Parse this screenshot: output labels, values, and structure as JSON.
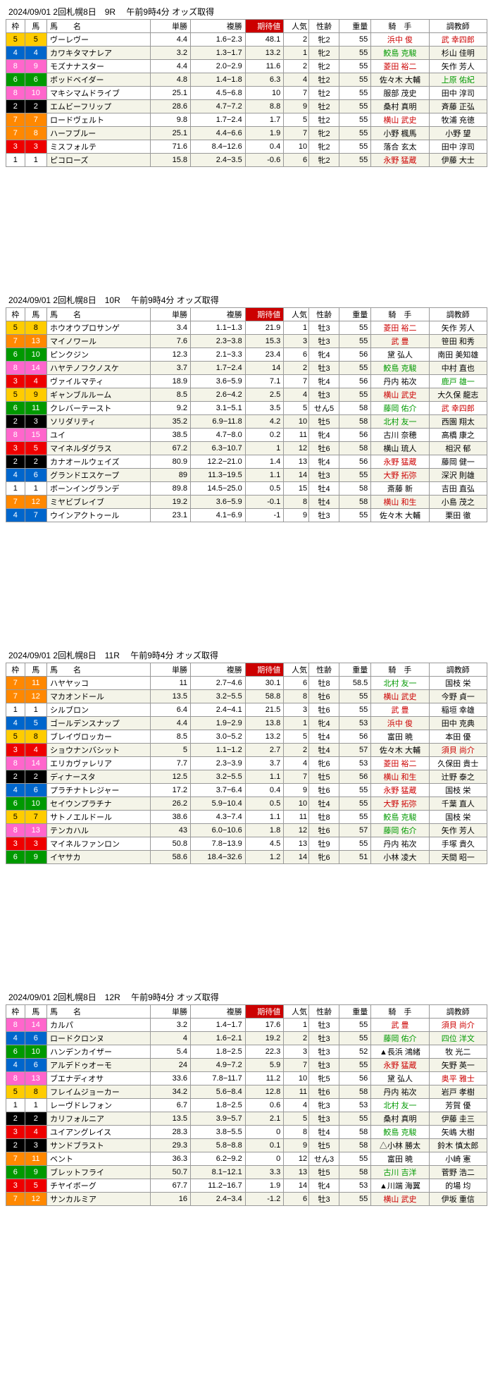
{
  "headers": {
    "waku": "枠",
    "uma": "馬",
    "name": "馬　　名",
    "tan": "単勝",
    "fuku": "複勝",
    "kitai": "期待値",
    "ninki": "人気",
    "sei": "性齢",
    "ju": "重量",
    "kishu": "騎　手",
    "tyo": "調教師"
  },
  "races": [
    {
      "title": "2024/09/01  2回札幌8日　9R　 午前9時4分 オッズ取得",
      "rows": [
        {
          "waku": 5,
          "uma": 5,
          "name": "ヴーレヴー",
          "tan": "4.4",
          "fuku": "1.6−2.3",
          "kitai": "48.1",
          "ninki": 2,
          "sei": "牝2",
          "ju": 55,
          "kishu": "浜中 俊",
          "kHL": "red",
          "tyo": "武 幸四郎",
          "tHL": "red"
        },
        {
          "waku": 4,
          "uma": 4,
          "name": "カワキタマナレア",
          "tan": "3.2",
          "fuku": "1.3−1.7",
          "kitai": "13.2",
          "ninki": 1,
          "sei": "牝2",
          "ju": 55,
          "kishu": "鮫島 克駿",
          "kHL": "green",
          "tyo": "杉山 佳明"
        },
        {
          "waku": 8,
          "uma": 9,
          "name": "モズナナスター",
          "tan": "4.4",
          "fuku": "2.0−2.9",
          "kitai": "11.6",
          "ninki": 2,
          "sei": "牝2",
          "ju": 55,
          "kishu": "菱田 裕二",
          "kHL": "red",
          "tyo": "矢作 芳人"
        },
        {
          "waku": 6,
          "uma": 6,
          "name": "ボッドベイダー",
          "tan": "4.8",
          "fuku": "1.4−1.8",
          "kitai": "6.3",
          "ninki": 4,
          "sei": "牡2",
          "ju": 55,
          "kishu": "佐々木 大輔",
          "tyo": "上原 佑紀",
          "tHL": "green"
        },
        {
          "waku": 8,
          "uma": 10,
          "name": "マキシマムドライブ",
          "tan": "25.1",
          "fuku": "4.5−6.8",
          "kitai": "10",
          "ninki": 7,
          "sei": "牡2",
          "ju": 55,
          "kishu": "服部 茂史",
          "tyo": "田中 淳司"
        },
        {
          "waku": 2,
          "uma": 2,
          "name": "エムビーフリップ",
          "tan": "28.6",
          "fuku": "4.7−7.2",
          "kitai": "8.8",
          "ninki": 9,
          "sei": "牡2",
          "ju": 55,
          "kishu": "桑村 真明",
          "tyo": "斉藤 正弘"
        },
        {
          "waku": 7,
          "uma": 7,
          "name": "ロードヴェルト",
          "tan": "9.8",
          "fuku": "1.7−2.4",
          "kitai": "1.7",
          "ninki": 5,
          "sei": "牡2",
          "ju": 55,
          "kishu": "横山 武史",
          "kHL": "red",
          "tyo": "牧浦 充徳"
        },
        {
          "waku": 7,
          "uma": 8,
          "name": "ハーフブルー",
          "tan": "25.1",
          "fuku": "4.4−6.6",
          "kitai": "1.9",
          "ninki": 7,
          "sei": "牝2",
          "ju": 55,
          "kishu": "小野 楓馬",
          "tyo": "小野 望"
        },
        {
          "waku": 3,
          "uma": 3,
          "name": "ミスフォルテ",
          "tan": "71.6",
          "fuku": "8.4−12.6",
          "kitai": "0.4",
          "ninki": 10,
          "sei": "牝2",
          "ju": 55,
          "kishu": "落合 玄太",
          "tyo": "田中 淳司"
        },
        {
          "waku": 1,
          "uma": 1,
          "name": "ピコローズ",
          "tan": "15.8",
          "fuku": "2.4−3.5",
          "kitai": "-0.6",
          "ninki": 6,
          "sei": "牝2",
          "ju": 55,
          "kishu": "永野 猛蔵",
          "kHL": "red",
          "tyo": "伊藤 大士"
        }
      ]
    },
    {
      "title": "2024/09/01  2回札幌8日　10R　 午前9時4分 オッズ取得",
      "rows": [
        {
          "waku": 5,
          "uma": 8,
          "name": "ホウオウプロサンゲ",
          "tan": "3.4",
          "fuku": "1.1−1.3",
          "kitai": "21.9",
          "ninki": 1,
          "sei": "牡3",
          "ju": 55,
          "kishu": "菱田 裕二",
          "kHL": "red",
          "tyo": "矢作 芳人"
        },
        {
          "waku": 7,
          "uma": 13,
          "name": "マイノワール",
          "tan": "7.6",
          "fuku": "2.3−3.8",
          "kitai": "15.3",
          "ninki": 3,
          "sei": "牡3",
          "ju": 55,
          "kishu": "武 豊",
          "kHL": "red",
          "tyo": "笹田 和秀"
        },
        {
          "waku": 6,
          "uma": 10,
          "name": "ピンクジン",
          "tan": "12.3",
          "fuku": "2.1−3.3",
          "kitai": "23.4",
          "ninki": 6,
          "sei": "牝4",
          "ju": 56,
          "kishu": "黛 弘人",
          "tyo": "南田 美知雄"
        },
        {
          "waku": 8,
          "uma": 14,
          "name": "ハヤテノフクノスケ",
          "tan": "3.7",
          "fuku": "1.7−2.4",
          "kitai": "14",
          "ninki": 2,
          "sei": "牡3",
          "ju": 55,
          "kishu": "鮫島 克駿",
          "kHL": "green",
          "tyo": "中村 直也"
        },
        {
          "waku": 3,
          "uma": 4,
          "name": "ヴァイルマティ",
          "tan": "18.9",
          "fuku": "3.6−5.9",
          "kitai": "7.1",
          "ninki": 7,
          "sei": "牝4",
          "ju": 56,
          "kishu": "丹内 祐次",
          "tyo": "鹿戸 雄一",
          "tHL": "green"
        },
        {
          "waku": 5,
          "uma": 9,
          "name": "ギャンブルルーム",
          "tan": "8.5",
          "fuku": "2.6−4.2",
          "kitai": "2.5",
          "ninki": 4,
          "sei": "牡3",
          "ju": 55,
          "kishu": "横山 武史",
          "kHL": "red",
          "tyo": "大久保 龍志"
        },
        {
          "waku": 6,
          "uma": 11,
          "name": "クレバーテースト",
          "tan": "9.2",
          "fuku": "3.1−5.1",
          "kitai": "3.5",
          "ninki": 5,
          "sei": "せん5",
          "ju": 58,
          "kishu": "藤岡 佑介",
          "kHL": "green",
          "tyo": "武 幸四郎",
          "tHL": "red"
        },
        {
          "waku": 2,
          "uma": 3,
          "name": "ソリダリティ",
          "tan": "35.2",
          "fuku": "6.9−11.8",
          "kitai": "4.2",
          "ninki": 10,
          "sei": "牡5",
          "ju": 58,
          "kishu": "北村 友一",
          "kHL": "green",
          "tyo": "西園 翔太"
        },
        {
          "waku": 8,
          "uma": 15,
          "name": "ユイ",
          "tan": "38.5",
          "fuku": "4.7−8.0",
          "kitai": "0.2",
          "ninki": 11,
          "sei": "牝4",
          "ju": 56,
          "kishu": "古川 奈穂",
          "tyo": "高橋 康之"
        },
        {
          "waku": 3,
          "uma": 5,
          "name": "マイネルダグラス",
          "tan": "67.2",
          "fuku": "6.3−10.7",
          "kitai": "1",
          "ninki": 12,
          "sei": "牡6",
          "ju": 58,
          "kishu": "横山 琉人",
          "tyo": "相沢 郁"
        },
        {
          "waku": 2,
          "uma": 2,
          "name": "カナオールウェイズ",
          "tan": "80.9",
          "fuku": "12.2−21.0",
          "kitai": "1.4",
          "ninki": 13,
          "sei": "牝4",
          "ju": 56,
          "kishu": "永野 猛蔵",
          "kHL": "red",
          "tyo": "藤岡 健一"
        },
        {
          "waku": 4,
          "uma": 6,
          "name": "グランドエスケープ",
          "tan": "89",
          "fuku": "11.3−19.5",
          "kitai": "1.1",
          "ninki": 14,
          "sei": "牡3",
          "ju": 55,
          "kishu": "大野 拓弥",
          "kHL": "red",
          "tyo": "深沢 則雄"
        },
        {
          "waku": 1,
          "uma": 1,
          "name": "ボーンイングランデ",
          "tan": "89.8",
          "fuku": "14.5−25.0",
          "kitai": "0.5",
          "ninki": 15,
          "sei": "牡4",
          "ju": 58,
          "kishu": "斎藤 新",
          "tyo": "吉田 直弘"
        },
        {
          "waku": 7,
          "uma": 12,
          "name": "ミヤビブレイブ",
          "tan": "19.2",
          "fuku": "3.6−5.9",
          "kitai": "-0.1",
          "ninki": 8,
          "sei": "牡4",
          "ju": 58,
          "kishu": "横山 和生",
          "kHL": "red",
          "tyo": "小島 茂之"
        },
        {
          "waku": 4,
          "uma": 7,
          "name": "ウインアクトゥール",
          "tan": "23.1",
          "fuku": "4.1−6.9",
          "kitai": "-1",
          "ninki": 9,
          "sei": "牡3",
          "ju": 55,
          "kishu": "佐々木 大輔",
          "tyo": "栗田 徹"
        }
      ]
    },
    {
      "title": "2024/09/01  2回札幌8日　11R　 午前9時4分 オッズ取得",
      "rows": [
        {
          "waku": 7,
          "uma": 11,
          "name": "ハヤヤッコ",
          "tan": "11",
          "fuku": "2.7−4.6",
          "kitai": "30.1",
          "ninki": 6,
          "sei": "牡8",
          "ju": 58.5,
          "kishu": "北村 友一",
          "kHL": "green",
          "tyo": "国枝 栄"
        },
        {
          "waku": 7,
          "uma": 12,
          "name": "マカオンドール",
          "tan": "13.5",
          "fuku": "3.2−5.5",
          "kitai": "58.8",
          "ninki": 8,
          "sei": "牡6",
          "ju": 55,
          "kishu": "横山 武史",
          "kHL": "red",
          "tyo": "今野 貞一"
        },
        {
          "waku": 1,
          "uma": 1,
          "name": "シルブロン",
          "tan": "6.4",
          "fuku": "2.4−4.1",
          "kitai": "21.5",
          "ninki": 3,
          "sei": "牡6",
          "ju": 55,
          "kishu": "武 豊",
          "kHL": "red",
          "tyo": "稲垣 幸雄"
        },
        {
          "waku": 4,
          "uma": 5,
          "name": "ゴールデンスナップ",
          "tan": "4.4",
          "fuku": "1.9−2.9",
          "kitai": "13.8",
          "ninki": 1,
          "sei": "牝4",
          "ju": 53,
          "kishu": "浜中 俊",
          "kHL": "red",
          "tyo": "田中 克典"
        },
        {
          "waku": 5,
          "uma": 8,
          "name": "ブレイヴロッカー",
          "tan": "8.5",
          "fuku": "3.0−5.2",
          "kitai": "13.2",
          "ninki": 5,
          "sei": "牡4",
          "ju": 56,
          "kishu": "富田 暁",
          "tyo": "本田 優"
        },
        {
          "waku": 3,
          "uma": 4,
          "name": "ショウナンバシット",
          "tan": "5",
          "fuku": "1.1−1.2",
          "kitai": "2.7",
          "ninki": 2,
          "sei": "牡4",
          "ju": 57,
          "kishu": "佐々木 大輔",
          "tyo": "須貝 尚介",
          "tHL": "red"
        },
        {
          "waku": 8,
          "uma": 14,
          "name": "エリカヴァレリア",
          "tan": "7.7",
          "fuku": "2.3−3.9",
          "kitai": "3.7",
          "ninki": 4,
          "sei": "牝6",
          "ju": 53,
          "kishu": "菱田 裕二",
          "kHL": "red",
          "tyo": "久保田 貴士"
        },
        {
          "waku": 2,
          "uma": 2,
          "name": "ディナースタ",
          "tan": "12.5",
          "fuku": "3.2−5.5",
          "kitai": "1.1",
          "ninki": 7,
          "sei": "牡5",
          "ju": 56,
          "kishu": "横山 和生",
          "kHL": "red",
          "tyo": "辻野 泰之"
        },
        {
          "waku": 4,
          "uma": 6,
          "name": "プラチナトレジャー",
          "tan": "17.2",
          "fuku": "3.7−6.4",
          "kitai": "0.4",
          "ninki": 9,
          "sei": "牡6",
          "ju": 55,
          "kishu": "永野 猛蔵",
          "kHL": "red",
          "tyo": "国枝 栄"
        },
        {
          "waku": 6,
          "uma": 10,
          "name": "セイウンプラチナ",
          "tan": "26.2",
          "fuku": "5.9−10.4",
          "kitai": "0.5",
          "ninki": 10,
          "sei": "牡4",
          "ju": 55,
          "kishu": "大野 拓弥",
          "kHL": "red",
          "tyo": "千葉 直人"
        },
        {
          "waku": 5,
          "uma": 7,
          "name": "サトノエルドール",
          "tan": "38.6",
          "fuku": "4.3−7.4",
          "kitai": "1.1",
          "ninki": 11,
          "sei": "牡8",
          "ju": 55,
          "kishu": "鮫島 克駿",
          "kHL": "green",
          "tyo": "国枝 栄"
        },
        {
          "waku": 8,
          "uma": 13,
          "name": "テンカハル",
          "tan": "43",
          "fuku": "6.0−10.6",
          "kitai": "1.8",
          "ninki": 12,
          "sei": "牡6",
          "ju": 57,
          "kishu": "藤岡 佑介",
          "kHL": "green",
          "tyo": "矢作 芳人"
        },
        {
          "waku": 3,
          "uma": 3,
          "name": "マイネルファンロン",
          "tan": "50.8",
          "fuku": "7.8−13.9",
          "kitai": "4.5",
          "ninki": 13,
          "sei": "牡9",
          "ju": 55,
          "kishu": "丹内 祐次",
          "tyo": "手塚 貴久"
        },
        {
          "waku": 6,
          "uma": 9,
          "name": "イヤサカ",
          "tan": "58.6",
          "fuku": "18.4−32.6",
          "kitai": "1.2",
          "ninki": 14,
          "sei": "牝6",
          "ju": 51,
          "kishu": "小林 凌大",
          "tyo": "天間 昭一"
        }
      ]
    },
    {
      "title": "2024/09/01  2回札幌8日　12R　 午前9時4分 オッズ取得",
      "rows": [
        {
          "waku": 8,
          "uma": 14,
          "name": "カルパ",
          "tan": "3.2",
          "fuku": "1.4−1.7",
          "kitai": "17.6",
          "ninki": 1,
          "sei": "牡3",
          "ju": 55,
          "kishu": "武 豊",
          "kHL": "red",
          "tyo": "須貝 尚介",
          "tHL": "red"
        },
        {
          "waku": 4,
          "uma": 6,
          "name": "ロードクロンヌ",
          "tan": "4",
          "fuku": "1.6−2.1",
          "kitai": "19.2",
          "ninki": 2,
          "sei": "牡3",
          "ju": 55,
          "kishu": "藤岡 佑介",
          "kHL": "green",
          "tyo": "四位 洋文",
          "tHL": "green"
        },
        {
          "waku": 6,
          "uma": 10,
          "name": "ハンデンカイザー",
          "tan": "5.4",
          "fuku": "1.8−2.5",
          "kitai": "22.3",
          "ninki": 3,
          "sei": "牡3",
          "ju": 52,
          "kishu": "▲長浜 鴻緒",
          "tyo": "牧 光二"
        },
        {
          "waku": 4,
          "uma": 6,
          "name": "アルデドゥオーモ",
          "tan": "24",
          "fuku": "4.9−7.2",
          "kitai": "5.9",
          "ninki": 7,
          "sei": "牡3",
          "ju": 55,
          "kishu": "永野 猛蔵",
          "kHL": "red",
          "tyo": "矢野 英一"
        },
        {
          "waku": 8,
          "uma": 13,
          "name": "ブエナディオサ",
          "tan": "33.6",
          "fuku": "7.8−11.7",
          "kitai": "11.2",
          "ninki": 10,
          "sei": "牝5",
          "ju": 56,
          "kishu": "黛 弘人",
          "tyo": "奥平 雅士",
          "tHL": "red"
        },
        {
          "waku": 5,
          "uma": 8,
          "name": "フレイムジョーカー",
          "tan": "34.2",
          "fuku": "5.6−8.4",
          "kitai": "12.8",
          "ninki": 11,
          "sei": "牡6",
          "ju": 58,
          "kishu": "丹内 祐次",
          "tyo": "岩戸 孝樹"
        },
        {
          "waku": 1,
          "uma": 1,
          "name": "レーヴドレフォン",
          "tan": "6.7",
          "fuku": "1.8−2.5",
          "kitai": "0.6",
          "ninki": 4,
          "sei": "牝3",
          "ju": 53,
          "kishu": "北村 友一",
          "kHL": "green",
          "tyo": "芳賀 優"
        },
        {
          "waku": 2,
          "uma": 2,
          "name": "カリフォルニア",
          "tan": "13.5",
          "fuku": "3.9−5.7",
          "kitai": "2.1",
          "ninki": 5,
          "sei": "牡3",
          "ju": 55,
          "kishu": "桑村 真明",
          "tyo": "伊藤 圭三"
        },
        {
          "waku": 3,
          "uma": 4,
          "name": "ユイアングレイス",
          "tan": "28.3",
          "fuku": "3.8−5.5",
          "kitai": "0",
          "ninki": 8,
          "sei": "牡4",
          "ju": 58,
          "kishu": "鮫島 克駿",
          "kHL": "green",
          "tyo": "矢嶋 大樹"
        },
        {
          "waku": 2,
          "uma": 3,
          "name": "サンドブラスト",
          "tan": "29.3",
          "fuku": "5.8−8.8",
          "kitai": "0.1",
          "ninki": 9,
          "sei": "牡5",
          "ju": 58,
          "kishu": "△小林 勝太",
          "tyo": "鈴木 慎太郎"
        },
        {
          "waku": 7,
          "uma": 11,
          "name": "ベント",
          "tan": "36.3",
          "fuku": "6.2−9.2",
          "kitai": "0",
          "ninki": 12,
          "sei": "せん3",
          "ju": 55,
          "kishu": "富田 暁",
          "tyo": "小崎 憲"
        },
        {
          "waku": 6,
          "uma": 9,
          "name": "ブレットフライ",
          "tan": "50.7",
          "fuku": "8.1−12.1",
          "kitai": "3.3",
          "ninki": 13,
          "sei": "牡5",
          "ju": 58,
          "kishu": "古川 吉洋",
          "kHL": "green",
          "tyo": "菅野 浩二"
        },
        {
          "waku": 3,
          "uma": 5,
          "name": "チヤイボーグ",
          "tan": "67.7",
          "fuku": "11.2−16.7",
          "kitai": "1.9",
          "ninki": 14,
          "sei": "牝4",
          "ju": 53,
          "kishu": "▲川端 海翼",
          "tyo": "的場 均"
        },
        {
          "waku": 7,
          "uma": 12,
          "name": "サンカルミア",
          "tan": "16",
          "fuku": "2.4−3.4",
          "kitai": "-1.2",
          "ninki": 6,
          "sei": "牡3",
          "ju": 55,
          "kishu": "横山 武史",
          "kHL": "red",
          "tyo": "伊坂 重信"
        }
      ]
    }
  ]
}
